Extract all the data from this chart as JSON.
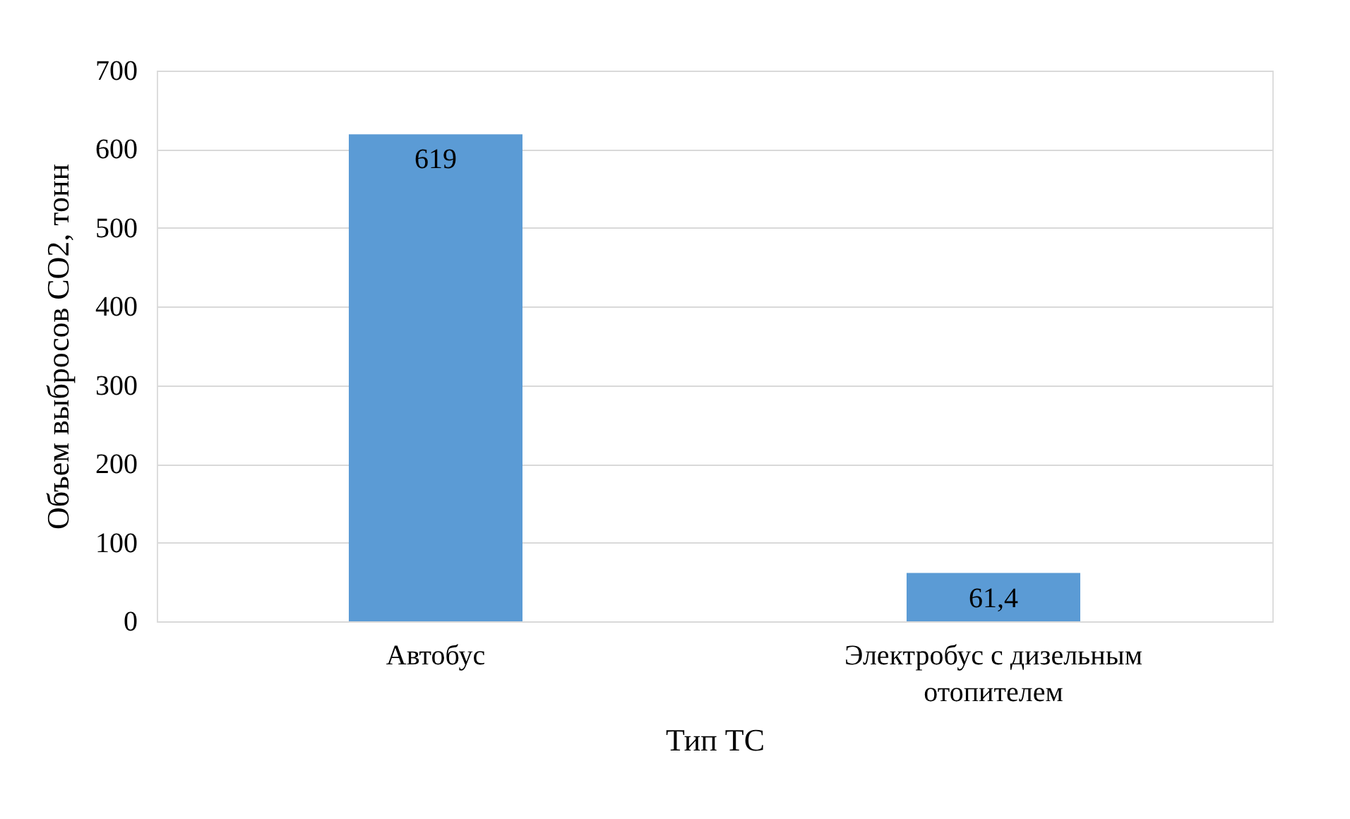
{
  "chart_data": {
    "type": "bar",
    "categories": [
      "Автобус",
      "Электробус с дизельным отопителем"
    ],
    "values": [
      619,
      61.4
    ],
    "value_labels": [
      "619",
      "61,4"
    ],
    "color": "#5b9bd5",
    "xlabel": "Тип ТС",
    "ylabel": "Объем выбросов CO2, тонн",
    "ylim": [
      0,
      700
    ],
    "yticks": [
      0,
      100,
      200,
      300,
      400,
      500,
      600,
      700
    ],
    "grid": "y"
  }
}
